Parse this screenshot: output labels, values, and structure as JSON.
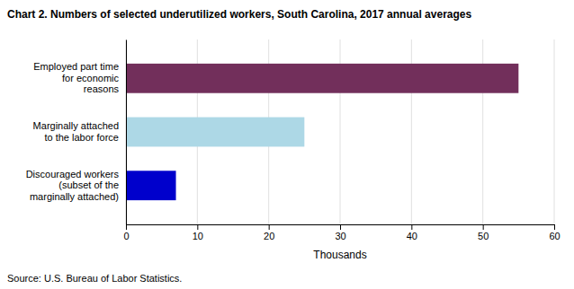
{
  "chart_data": {
    "type": "bar",
    "orientation": "horizontal",
    "title": "Chart 2. Numbers of selected underutilized workers, South Carolina, 2017 annual averages",
    "categories": [
      "Discouraged workers\n(subset of the\nmarginally attached)",
      "Marginally attached\nto the labor force",
      "Employed part time\nfor economic\nreasons"
    ],
    "values": [
      7,
      25,
      55
    ],
    "colors": [
      "#0000cc",
      "#add8e6",
      "#722f5b"
    ],
    "xlim": [
      0,
      60
    ],
    "xticks": [
      0,
      10,
      20,
      30,
      40,
      50,
      60
    ],
    "xlabel": "Thousands",
    "source": "Source: U.S. Bureau of Labor Statistics.",
    "grid": true
  }
}
